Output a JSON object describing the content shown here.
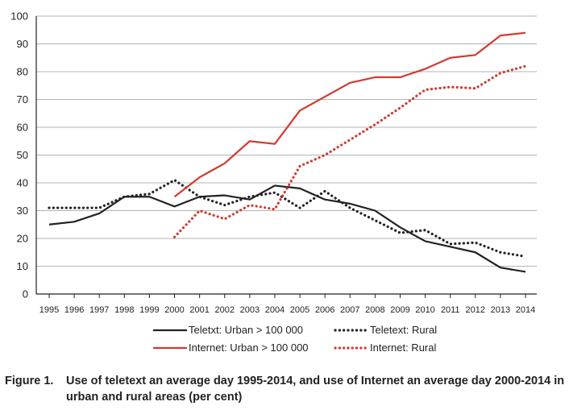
{
  "chart_data": {
    "type": "line",
    "categories": [
      "1995",
      "1996",
      "1997",
      "1998",
      "1999",
      "2000",
      "2001",
      "2002",
      "2003",
      "2004",
      "2005",
      "2006",
      "2007",
      "2008",
      "2009",
      "2010",
      "2011",
      "2012",
      "2013",
      "2014"
    ],
    "ylim": [
      0,
      100
    ],
    "yticks": [
      0,
      10,
      20,
      30,
      40,
      50,
      60,
      70,
      80,
      90,
      100
    ],
    "grid": true,
    "legend": "bottom",
    "series": [
      {
        "name": "Teletxt: Urban > 100 000",
        "color": "#222222",
        "style": "solid",
        "values": [
          25,
          26,
          29,
          35,
          35,
          31.5,
          35,
          35.5,
          34,
          39,
          38,
          34,
          32.5,
          30,
          24,
          19,
          17,
          15,
          9.5,
          8
        ]
      },
      {
        "name": "Teletext: Rural",
        "color": "#222222",
        "style": "dotted",
        "values": [
          31,
          31,
          31,
          35,
          36,
          41,
          35,
          32,
          35,
          36.5,
          31,
          37,
          31,
          26.5,
          22,
          23,
          18,
          18.5,
          15,
          13.5
        ]
      },
      {
        "name": "Internet: Urban > 100 000",
        "color": "#d13a2f",
        "style": "solid",
        "values": [
          null,
          null,
          null,
          null,
          null,
          35,
          42,
          47,
          55,
          54,
          66,
          71,
          76,
          78,
          78,
          81,
          85,
          86,
          93,
          94
        ]
      },
      {
        "name": "Internet: Rural",
        "color": "#d13a2f",
        "style": "dotted",
        "values": [
          null,
          null,
          null,
          null,
          null,
          20.5,
          30,
          27,
          32,
          30.5,
          46,
          50,
          55.5,
          61,
          67,
          73.5,
          74.5,
          74,
          79.5,
          82
        ]
      }
    ]
  },
  "caption": {
    "number": "Figure 1.",
    "text": "Use of teletext an average day 1995-2014, and use of Internet an average day 2000-2014 in urban and rural areas (per cent)"
  }
}
